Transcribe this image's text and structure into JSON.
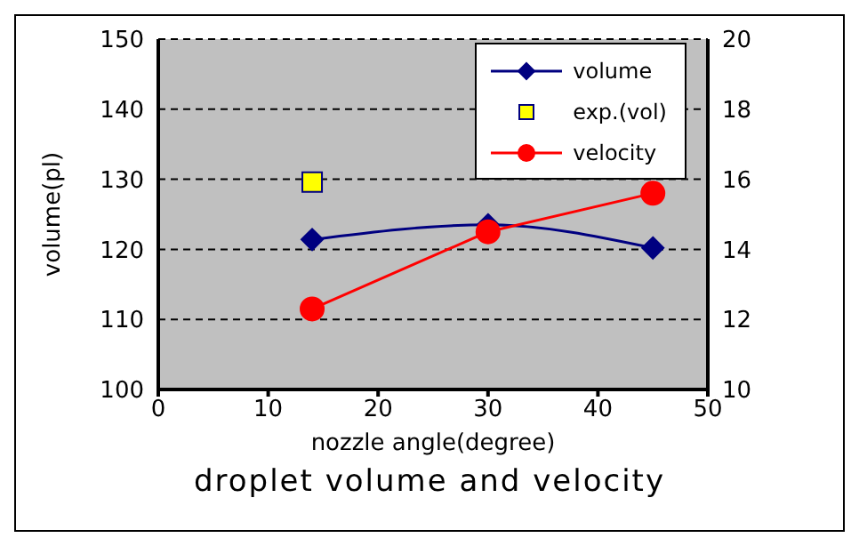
{
  "chart_data": {
    "type": "line",
    "title": "droplet volume and velocity",
    "xlabel": "nozzle angle(degree)",
    "ylabel": "volume(pl)",
    "xlim": [
      0,
      50
    ],
    "xticks": [
      0,
      10,
      20,
      30,
      40,
      50
    ],
    "ylim": [
      100,
      150
    ],
    "yticks": [
      100,
      110,
      120,
      130,
      140,
      150
    ],
    "y2lim": [
      10,
      20
    ],
    "y2ticks": [
      10,
      12,
      14,
      16,
      18,
      20
    ],
    "grid": "y",
    "legend": "top right",
    "line_style": "solid",
    "series": [
      {
        "name": "volume",
        "color": "#000080",
        "marker": "diamond",
        "x": [
          14,
          30,
          45
        ],
        "values": [
          121.4,
          123.5,
          120.2
        ]
      },
      {
        "name": "exp.(vol)",
        "type": "scatter",
        "color": "#ffff00",
        "marker": "square",
        "x": [
          14
        ],
        "values": [
          129.6
        ]
      },
      {
        "name": "velocity",
        "axis": "y2",
        "color": "#ff0000",
        "marker": "circle",
        "x": [
          14,
          30,
          45
        ],
        "values": [
          12.3,
          14.5,
          15.6
        ]
      }
    ]
  }
}
